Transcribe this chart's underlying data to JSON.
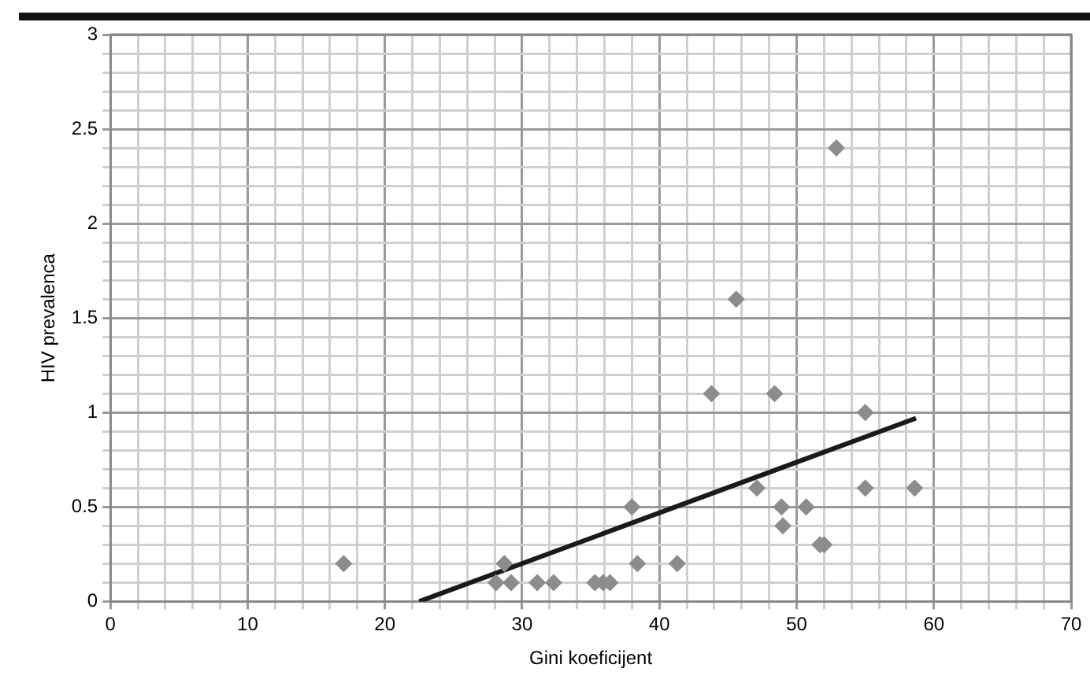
{
  "chart_data": {
    "type": "scatter",
    "xlabel": "Gini koeficijent",
    "ylabel": "HIV prevalenca",
    "marker": "diamond",
    "grid": true,
    "legend": false,
    "xlim": [
      0,
      70
    ],
    "ylim": [
      0,
      3
    ],
    "xticks": [
      0,
      {
        "value": 2,
        "label": null
      },
      {
        "value": 4,
        "label": null
      },
      {
        "value": 6,
        "label": null
      },
      {
        "value": 8,
        "label": null
      },
      10,
      {
        "value": 12,
        "label": null
      },
      {
        "value": 14,
        "label": null
      },
      {
        "value": 16,
        "label": null
      },
      {
        "value": 18,
        "label": null
      },
      20,
      {
        "value": 22,
        "label": null
      },
      {
        "value": 24,
        "label": null
      },
      {
        "value": 26,
        "label": null
      },
      {
        "value": 28,
        "label": null
      },
      30,
      {
        "value": 32,
        "label": null
      },
      {
        "value": 34,
        "label": null
      },
      {
        "value": 36,
        "label": null
      },
      {
        "value": 38,
        "label": null
      },
      40,
      {
        "value": 42,
        "label": null
      },
      {
        "value": 44,
        "label": null
      },
      {
        "value": 46,
        "label": null
      },
      {
        "value": 48,
        "label": null
      },
      50,
      {
        "value": 52,
        "label": null
      },
      {
        "value": 54,
        "label": null
      },
      {
        "value": 56,
        "label": null
      },
      {
        "value": 58,
        "label": null
      },
      60,
      {
        "value": 62,
        "label": null
      },
      {
        "value": 64,
        "label": null
      },
      {
        "value": 66,
        "label": null
      },
      {
        "value": 68,
        "label": null
      },
      70
    ],
    "yticks": [
      0,
      {
        "value": 0.1,
        "label": null
      },
      {
        "value": 0.2,
        "label": null
      },
      {
        "value": 0.3,
        "label": null
      },
      {
        "value": 0.4,
        "label": null
      },
      0.5,
      {
        "value": 0.6,
        "label": null
      },
      {
        "value": 0.7,
        "label": null
      },
      {
        "value": 0.8,
        "label": null
      },
      {
        "value": 0.9,
        "label": null
      },
      1,
      {
        "value": 1.1,
        "label": null
      },
      {
        "value": 1.2,
        "label": null
      },
      {
        "value": 1.3,
        "label": null
      },
      {
        "value": 1.4,
        "label": null
      },
      1.5,
      {
        "value": 1.6,
        "label": null
      },
      {
        "value": 1.7,
        "label": null
      },
      {
        "value": 1.8,
        "label": null
      },
      {
        "value": 1.9,
        "label": null
      },
      2,
      {
        "value": 2.1,
        "label": null
      },
      {
        "value": 2.2,
        "label": null
      },
      {
        "value": 2.3,
        "label": null
      },
      {
        "value": 2.4,
        "label": null
      },
      2.5,
      {
        "value": 2.6,
        "label": null
      },
      {
        "value": 2.7,
        "label": null
      },
      {
        "value": 2.8,
        "label": null
      },
      {
        "value": 2.9,
        "label": null
      },
      3
    ],
    "series": [
      {
        "type": "scatter",
        "color": "#8c8c8c",
        "x": [
          17.0,
          28.7,
          28.1,
          29.2,
          31.1,
          32.3,
          35.3,
          35.9,
          36.4,
          38.0,
          38.4,
          41.3,
          43.8,
          45.6,
          48.4,
          47.1,
          48.9,
          49.0,
          50.7,
          51.7,
          52.0,
          52.9,
          55.0,
          55.0,
          58.6
        ],
        "values": [
          0.2,
          0.2,
          0.1,
          0.1,
          0.1,
          0.1,
          0.1,
          0.1,
          0.1,
          0.5,
          0.2,
          0.2,
          1.1,
          1.6,
          1.1,
          0.6,
          0.5,
          0.4,
          0.5,
          0.3,
          0.3,
          2.4,
          1.0,
          0.6,
          0.6
        ]
      },
      {
        "type": "line",
        "color": "#1a1a1a",
        "marker": "none",
        "x": [
          22.5,
          58.7
        ],
        "values": [
          0,
          0.97
        ]
      }
    ]
  }
}
